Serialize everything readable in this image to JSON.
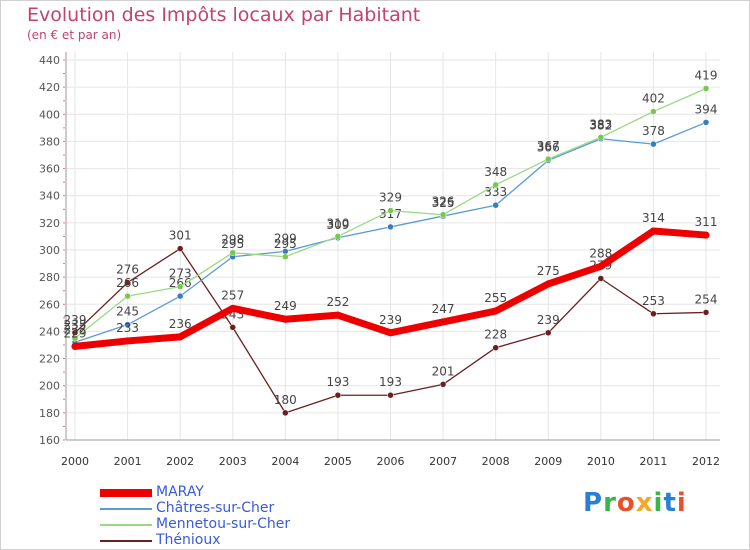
{
  "title": "Evolution des Impôts locaux par Habitant",
  "subtitle": "(en € et par an)",
  "brand": {
    "text": "Proxiti",
    "letter_colors": [
      "#2a7fd4",
      "#3ab54a",
      "#e8502e",
      "#f5a623",
      "#3ab54a",
      "#2a7fd4",
      "#e8502e"
    ]
  },
  "chart_data": {
    "type": "line",
    "x": [
      "2000",
      "2001",
      "2002",
      "2003",
      "2004",
      "2005",
      "2006",
      "2007",
      "2008",
      "2009",
      "2010",
      "2011",
      "2012"
    ],
    "ylim": [
      160,
      440
    ],
    "y_ticks": [
      "160",
      "180",
      "200",
      "220",
      "240",
      "260",
      "280",
      "300",
      "320",
      "340",
      "360",
      "380",
      "400",
      "420",
      "440"
    ],
    "grid": true,
    "legend_position": "bottom-left",
    "series": [
      {
        "name": "Thénioux",
        "color": "#6b2020",
        "width": 1.3,
        "marker": "#6b2020",
        "values": [
          239,
          276,
          301,
          243,
          180,
          193,
          193,
          201,
          228,
          239,
          279,
          253,
          254
        ]
      },
      {
        "name": "Châtres-sur-Cher",
        "color": "#5b9bd5",
        "width": 1.3,
        "marker": "#3a7cc0",
        "values": [
          232,
          245,
          266,
          295,
          299,
          309,
          317,
          325,
          333,
          366,
          382,
          378,
          394
        ]
      },
      {
        "name": "Mennetou-sur-Cher",
        "color": "#98d982",
        "width": 1.3,
        "marker": "#78c850",
        "values": [
          235,
          266,
          273,
          298,
          295,
          310,
          329,
          326,
          348,
          367,
          383,
          402,
          419
        ]
      },
      {
        "name": "MARAY",
        "color": "#ee0000",
        "width": 7,
        "marker": "#ee0000",
        "values": [
          229,
          233,
          236,
          257,
          249,
          252,
          239,
          247,
          255,
          275,
          288,
          314,
          311
        ]
      }
    ],
    "legend_order": [
      "MARAY",
      "Châtres-sur-Cher",
      "Mennetou-sur-Cher",
      "Thénioux"
    ]
  }
}
